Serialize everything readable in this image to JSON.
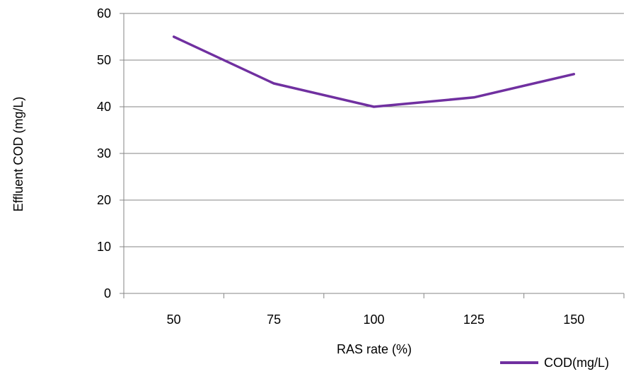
{
  "chart_data": {
    "type": "line",
    "categories": [
      "50",
      "75",
      "100",
      "125",
      "150"
    ],
    "series": [
      {
        "name": "COD(mg/L)",
        "values": [
          55,
          45,
          40,
          42,
          47
        ],
        "color": "#7030a0"
      }
    ],
    "xlabel": "RAS rate (%)",
    "ylabel": "Effluent COD (mg/L)",
    "ylim": [
      0,
      60
    ],
    "yticks": [
      0,
      10,
      20,
      30,
      40,
      50,
      60
    ],
    "grid": true,
    "legend_position": "bottom-right"
  }
}
